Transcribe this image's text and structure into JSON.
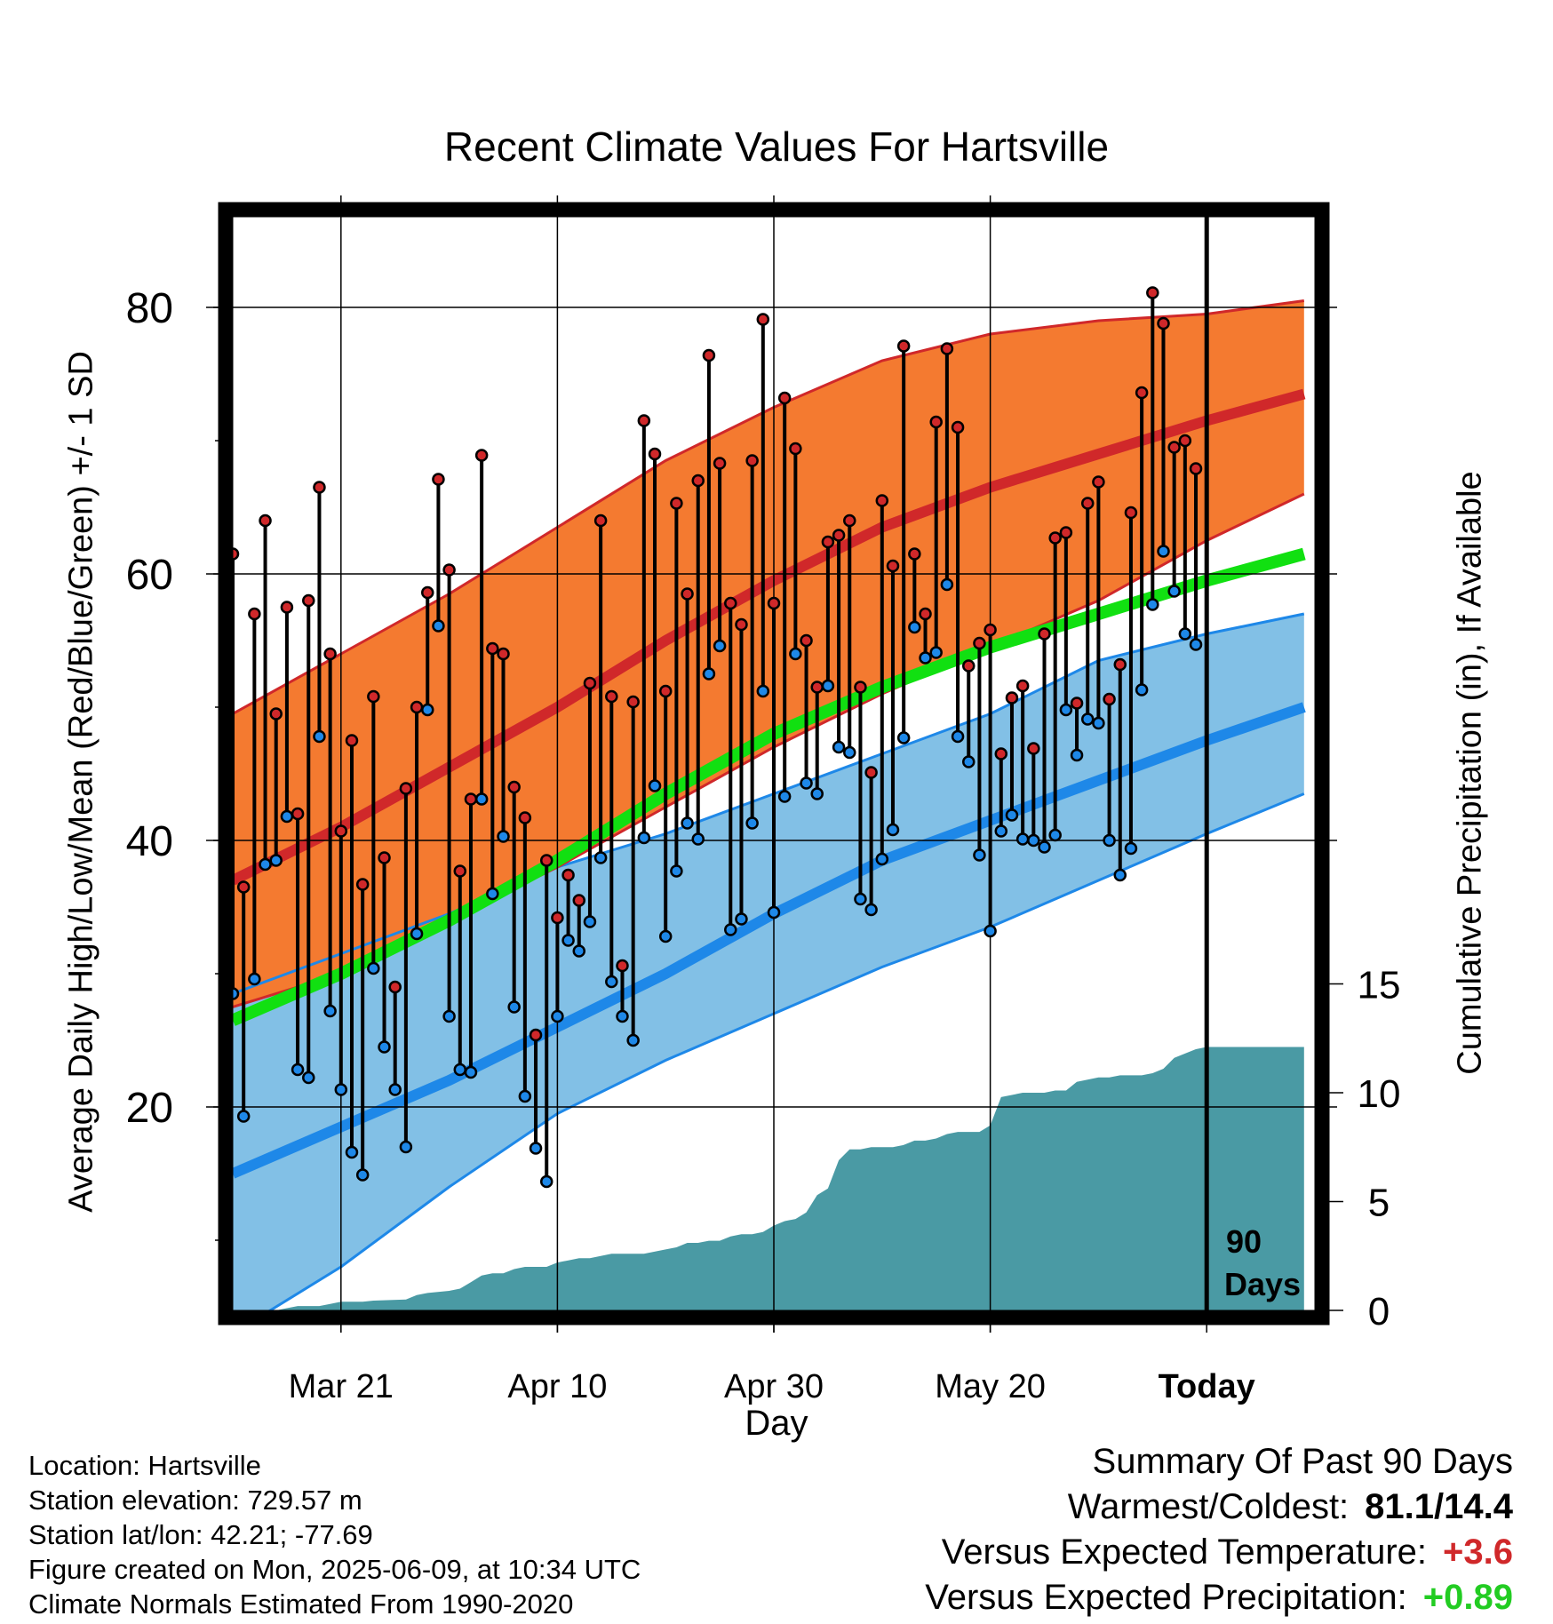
{
  "title": "Recent Climate Values For Hartsville",
  "ylabel_left": "Average Daily High/Low/Mean (Red/Blue/Green) +/- 1 SD",
  "ylabel_right": "Cumulative Precipitation (in), If Available",
  "xlabel": "Day",
  "window_label": "90 Days",
  "colors": {
    "high_band": "#f47a30",
    "high_line": "#d0282a",
    "low_band": "#82c0e6",
    "low_line": "#1e88e8",
    "mean_line": "#11e011",
    "precip": "#4a9aa4",
    "warm_text": "#d0282a",
    "precip_text": "#22cc22"
  },
  "info": {
    "location": "Location: Hartsville",
    "elevation": "Station elevation: 729.57 m",
    "latlon": "Station lat/lon: 42.21; -77.69",
    "created": "Figure created on Mon, 2025-06-09, at 10:34 UTC",
    "normals": "Climate Normals Estimated From 1990-2020"
  },
  "summary": {
    "heading": "Summary Of Past 90 Days",
    "warm_cold_label": "Warmest/Coldest:",
    "warm_cold_value": "81.1/14.4",
    "temp_label": "Versus Expected Temperature:",
    "temp_value": "+3.6",
    "precip_label": "Versus Expected Precipitation:",
    "precip_value": "+0.89"
  },
  "chart_data": {
    "type": "line",
    "x_unit": "day index (0 = 90 days before Today)",
    "x_tick_labels": [
      {
        "x": 10,
        "label": "Mar 21"
      },
      {
        "x": 30,
        "label": "Apr 10"
      },
      {
        "x": 50,
        "label": "Apr 30"
      },
      {
        "x": 70,
        "label": "May 20"
      },
      {
        "x": 90,
        "label": "Today"
      }
    ],
    "xlim": [
      0,
      99
    ],
    "ylim_left": [
      0,
      85
    ],
    "y_ticks_left": [
      20,
      40,
      60,
      80
    ],
    "ylim_right": [
      0,
      15
    ],
    "y_ticks_right": [
      0,
      5,
      10,
      15
    ],
    "today_x": 90,
    "normals_x": [
      0,
      10,
      20,
      30,
      40,
      50,
      60,
      70,
      80,
      90,
      99
    ],
    "normal_high_mean": [
      37,
      41,
      45.5,
      50,
      55,
      59.5,
      63.5,
      66.5,
      69,
      71.5,
      73.5
    ],
    "normal_high_plus": [
      49.5,
      54,
      58.5,
      63.5,
      68.5,
      72.5,
      76,
      78,
      79,
      79.5,
      80.5
    ],
    "normal_high_minus": [
      27.5,
      30,
      34,
      38,
      42.5,
      47,
      51,
      54.5,
      58,
      62.5,
      66
    ],
    "normal_mean": [
      26.5,
      30,
      34,
      38.5,
      43.5,
      48,
      51.5,
      54.5,
      57,
      59.5,
      61.5
    ],
    "normal_low_mean": [
      15,
      18.5,
      22,
      26,
      30,
      34.5,
      38.5,
      41.5,
      44.5,
      47.5,
      50
    ],
    "normal_low_plus": [
      28.5,
      31.5,
      34.5,
      38,
      40.5,
      43.5,
      46.5,
      49.5,
      53.5,
      55.5,
      57
    ],
    "normal_low_minus": [
      3,
      8,
      14,
      19.5,
      23.5,
      27,
      30.5,
      33.5,
      37,
      40.5,
      43.5
    ],
    "daily_x": [
      0,
      1,
      2,
      3,
      4,
      5,
      6,
      7,
      8,
      9,
      10,
      11,
      12,
      13,
      14,
      15,
      16,
      17,
      18,
      19,
      20,
      21,
      22,
      23,
      24,
      25,
      26,
      27,
      28,
      29,
      30,
      31,
      32,
      33,
      34,
      35,
      36,
      37,
      38,
      39,
      40,
      41,
      42,
      43,
      44,
      45,
      46,
      47,
      48,
      49,
      50,
      51,
      52,
      53,
      54,
      55,
      56,
      57,
      58,
      59,
      60,
      61,
      62,
      63,
      64,
      65,
      66,
      67,
      68,
      69,
      70,
      71,
      72,
      73,
      74,
      75,
      76,
      77,
      78,
      79,
      80,
      81,
      82,
      83,
      84,
      85,
      86,
      87,
      88,
      89
    ],
    "daily_high": [
      61.5,
      36.5,
      57,
      64,
      49.5,
      57.5,
      42,
      58,
      66.5,
      54,
      40.7,
      47.5,
      36.7,
      50.8,
      38.7,
      29,
      43.9,
      50,
      58.6,
      67.1,
      60.3,
      37.7,
      43.1,
      68.9,
      54.4,
      54,
      44,
      41.7,
      25.4,
      38.5,
      34.2,
      37.4,
      35.5,
      51.8,
      64,
      50.8,
      30.6,
      50.4,
      71.5,
      69,
      51.2,
      65.3,
      58.5,
      67,
      76.4,
      68.3,
      57.8,
      56.2,
      68.5,
      79.1,
      57.8,
      73.2,
      69.4,
      55,
      51.5,
      62.4,
      62.9,
      64,
      51.5,
      45.1,
      65.5,
      60.6,
      77.1,
      61.5,
      57,
      71.4,
      76.9,
      71,
      53.1,
      54.8,
      55.8,
      46.5,
      50.7,
      51.6,
      46.9,
      55.5,
      62.7,
      63.1,
      50.3,
      65.3,
      66.9,
      50.6,
      53.2,
      64.6,
      73.6,
      81.1,
      78.8,
      69.5,
      70,
      67.9
    ],
    "daily_low": [
      28.5,
      19.3,
      29.6,
      38.2,
      38.5,
      41.8,
      22.8,
      22.2,
      47.8,
      27.2,
      21.3,
      16.6,
      14.9,
      30.4,
      24.5,
      21.3,
      17,
      33,
      49.8,
      56.1,
      26.8,
      22.8,
      22.6,
      43.1,
      36,
      40.3,
      27.5,
      20.8,
      16.9,
      14.4,
      26.8,
      32.5,
      31.7,
      33.9,
      38.7,
      29.4,
      26.8,
      25,
      40.2,
      44.1,
      32.8,
      37.7,
      41.3,
      40.1,
      52.5,
      54.6,
      33.3,
      34.1,
      41.3,
      51.2,
      34.6,
      43.3,
      54,
      44.3,
      43.5,
      51.6,
      47,
      46.6,
      35.6,
      34.8,
      38.6,
      40.8,
      47.7,
      56,
      53.7,
      54.1,
      59.2,
      47.8,
      45.9,
      38.9,
      33.2,
      40.7,
      41.9,
      40.1,
      40,
      39.5,
      40.4,
      49.8,
      46.4,
      49.1,
      48.8,
      40,
      37.4,
      39.4,
      51.3,
      57.7,
      61.7,
      58.7,
      55.5,
      54.7
    ],
    "precip_x": [
      0,
      3,
      4,
      5,
      6,
      8,
      9,
      10,
      12,
      13,
      16,
      17,
      18,
      20,
      21,
      22,
      23,
      24,
      25,
      26,
      27,
      28,
      29,
      30,
      31,
      32,
      33,
      34,
      35,
      36,
      38,
      40,
      41,
      42,
      43,
      44,
      45,
      46,
      47,
      48,
      49,
      50,
      51,
      52,
      53,
      54,
      55,
      56,
      57,
      58,
      59,
      60,
      61,
      62,
      63,
      64,
      65,
      66,
      67,
      68,
      69,
      70,
      71,
      72,
      73,
      74,
      75,
      76,
      77,
      78,
      79,
      80,
      81,
      82,
      83,
      84,
      85,
      86,
      87,
      88,
      89,
      90,
      99
    ],
    "precip": [
      0,
      0,
      0,
      0.1,
      0.2,
      0.2,
      0.3,
      0.4,
      0.4,
      0.45,
      0.5,
      0.7,
      0.8,
      0.9,
      1,
      1.3,
      1.6,
      1.7,
      1.7,
      1.9,
      2,
      2,
      2,
      2.2,
      2.3,
      2.4,
      2.4,
      2.5,
      2.6,
      2.6,
      2.6,
      2.8,
      2.9,
      3.1,
      3.1,
      3.2,
      3.2,
      3.4,
      3.5,
      3.5,
      3.6,
      3.9,
      4.1,
      4.2,
      4.5,
      5.3,
      5.6,
      6.9,
      7.4,
      7.4,
      7.5,
      7.5,
      7.5,
      7.6,
      7.8,
      7.8,
      7.9,
      8.1,
      8.2,
      8.2,
      8.2,
      8.5,
      9.8,
      9.9,
      10,
      10,
      10,
      10.1,
      10.1,
      10.5,
      10.6,
      10.7,
      10.7,
      10.8,
      10.8,
      10.8,
      10.9,
      11.1,
      11.6,
      11.8,
      12,
      12.1,
      12.1
    ]
  }
}
